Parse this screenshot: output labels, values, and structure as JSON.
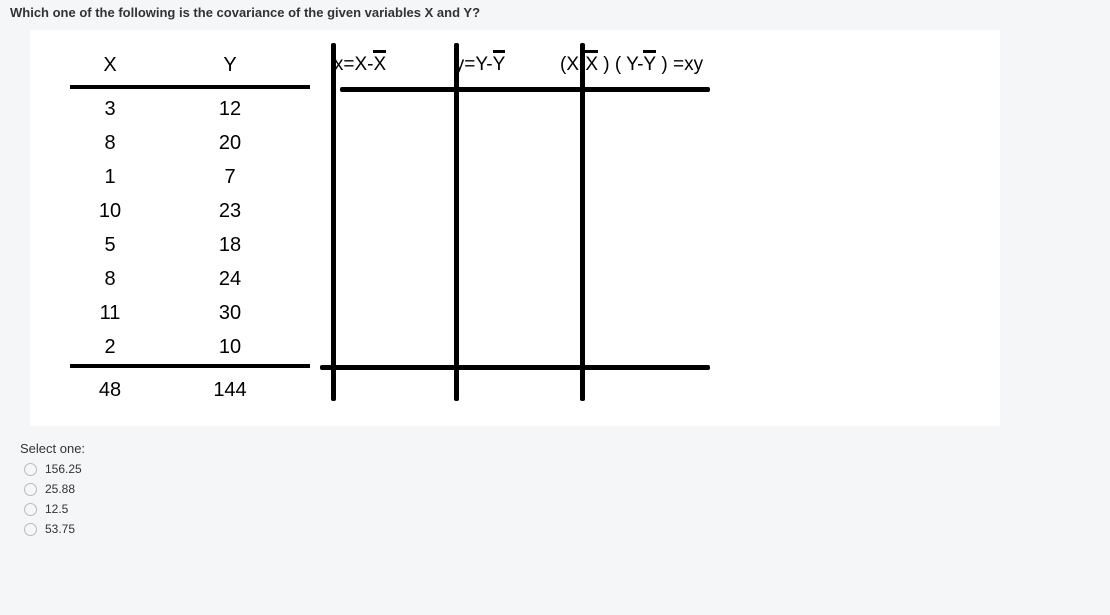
{
  "question": {
    "text": "Which one of the following is the covariance of the given variables X and Y?"
  },
  "table": {
    "headers": {
      "x": "X",
      "y": "Y",
      "xdev_prefix": "x=X-",
      "xdev_bar": "X",
      "ydev_prefix": "y=Y-",
      "ydev_bar": "Y",
      "xy_lparen": "(X-",
      "xy_xbar": "X",
      "xy_mid": " ) (  Y-",
      "xy_ybar": "Y",
      "xy_end": "  ) =xy"
    },
    "rows": [
      {
        "x": "3",
        "y": "12"
      },
      {
        "x": "8",
        "y": "20"
      },
      {
        "x": "1",
        "y": "7"
      },
      {
        "x": "10",
        "y": "23"
      },
      {
        "x": "5",
        "y": "18"
      },
      {
        "x": "8",
        "y": "24"
      },
      {
        "x": "11",
        "y": "30"
      },
      {
        "x": "2",
        "y": "10"
      }
    ],
    "sum": {
      "x": "48",
      "y": "144"
    }
  },
  "answers": {
    "select_label": "Select one:",
    "options": [
      {
        "label": "156.25"
      },
      {
        "label": "25.88"
      },
      {
        "label": "12.5"
      },
      {
        "label": "53.75"
      }
    ]
  },
  "colors": {
    "page_bg": "#f5f6f8",
    "table_bg": "#ffffff",
    "border": "#000000",
    "text": "#333333"
  }
}
